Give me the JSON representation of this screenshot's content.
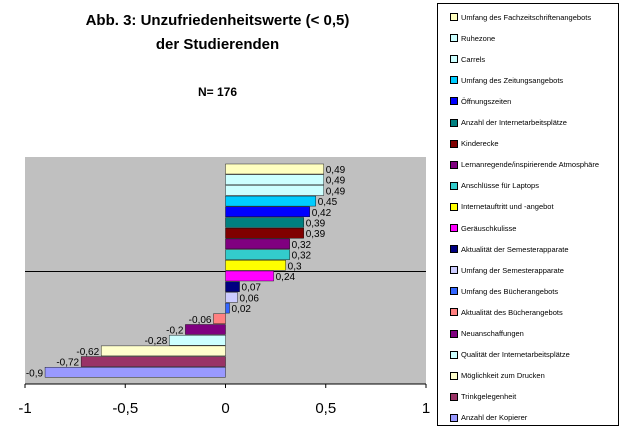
{
  "chart_data": {
    "type": "bar",
    "orientation": "horizontal",
    "title": "Abb. 3: Unzufriedenheitswerte (< 0,5)",
    "subtitle": "der Studierenden",
    "n_label": "N= 176",
    "xlim": [
      -1,
      1
    ],
    "xticks": [
      "-1",
      "-0,5",
      "0",
      "0,5",
      "1"
    ],
    "categories": [
      "Umfang des Fachzeitschriftenangebots",
      "Ruhezone",
      "Carrels",
      "Umfang des Zeitungsangebots",
      "Öffnungszeiten",
      "Anzahl der Internetarbeitsplätze",
      "Kinderecke",
      "Lernanregende/inspirierende Atmosphäre",
      "Anschlüsse für Laptops",
      "Internetauftritt und -angebot",
      "Geräuschkulisse",
      "Aktualität der Semesterapparate",
      "Umfang der Semesterapparate",
      "Umfang des Bücherangebots",
      "Aktualität des Bücherangebots",
      "Neuanschaffungen",
      "Qualität der Internetarbeitsplätze",
      "Möglichkeit zum Drucken",
      "Trinkgelegenheit",
      "Anzahl der Kopierer"
    ],
    "values": [
      0.49,
      0.49,
      0.49,
      0.45,
      0.42,
      0.39,
      0.39,
      0.32,
      0.32,
      0.3,
      0.24,
      0.07,
      0.06,
      0.02,
      -0.06,
      -0.2,
      -0.28,
      -0.62,
      -0.72,
      -0.9
    ],
    "value_labels": [
      "0,49",
      "0,49",
      "0,49",
      "0,45",
      "0,42",
      "0,39",
      "0,39",
      "0,32",
      "0,32",
      "0,3",
      "0,24",
      "0,07",
      "0,06",
      "0,02",
      "-0,06",
      "-0,2",
      "-0,28",
      "-0,62",
      "-0,72",
      "-0,9"
    ],
    "colors": [
      "#ffffc0",
      "#ccffff",
      "#ccffff",
      "#00ccff",
      "#0000ff",
      "#008080",
      "#800000",
      "#800080",
      "#33cccc",
      "#ffff00",
      "#ff00ff",
      "#000080",
      "#ccccff",
      "#3366ff",
      "#ff8080",
      "#800080",
      "#ccffff",
      "#ffffcc",
      "#993366",
      "#9999ff"
    ],
    "plot_background": "#c0c0c0"
  }
}
